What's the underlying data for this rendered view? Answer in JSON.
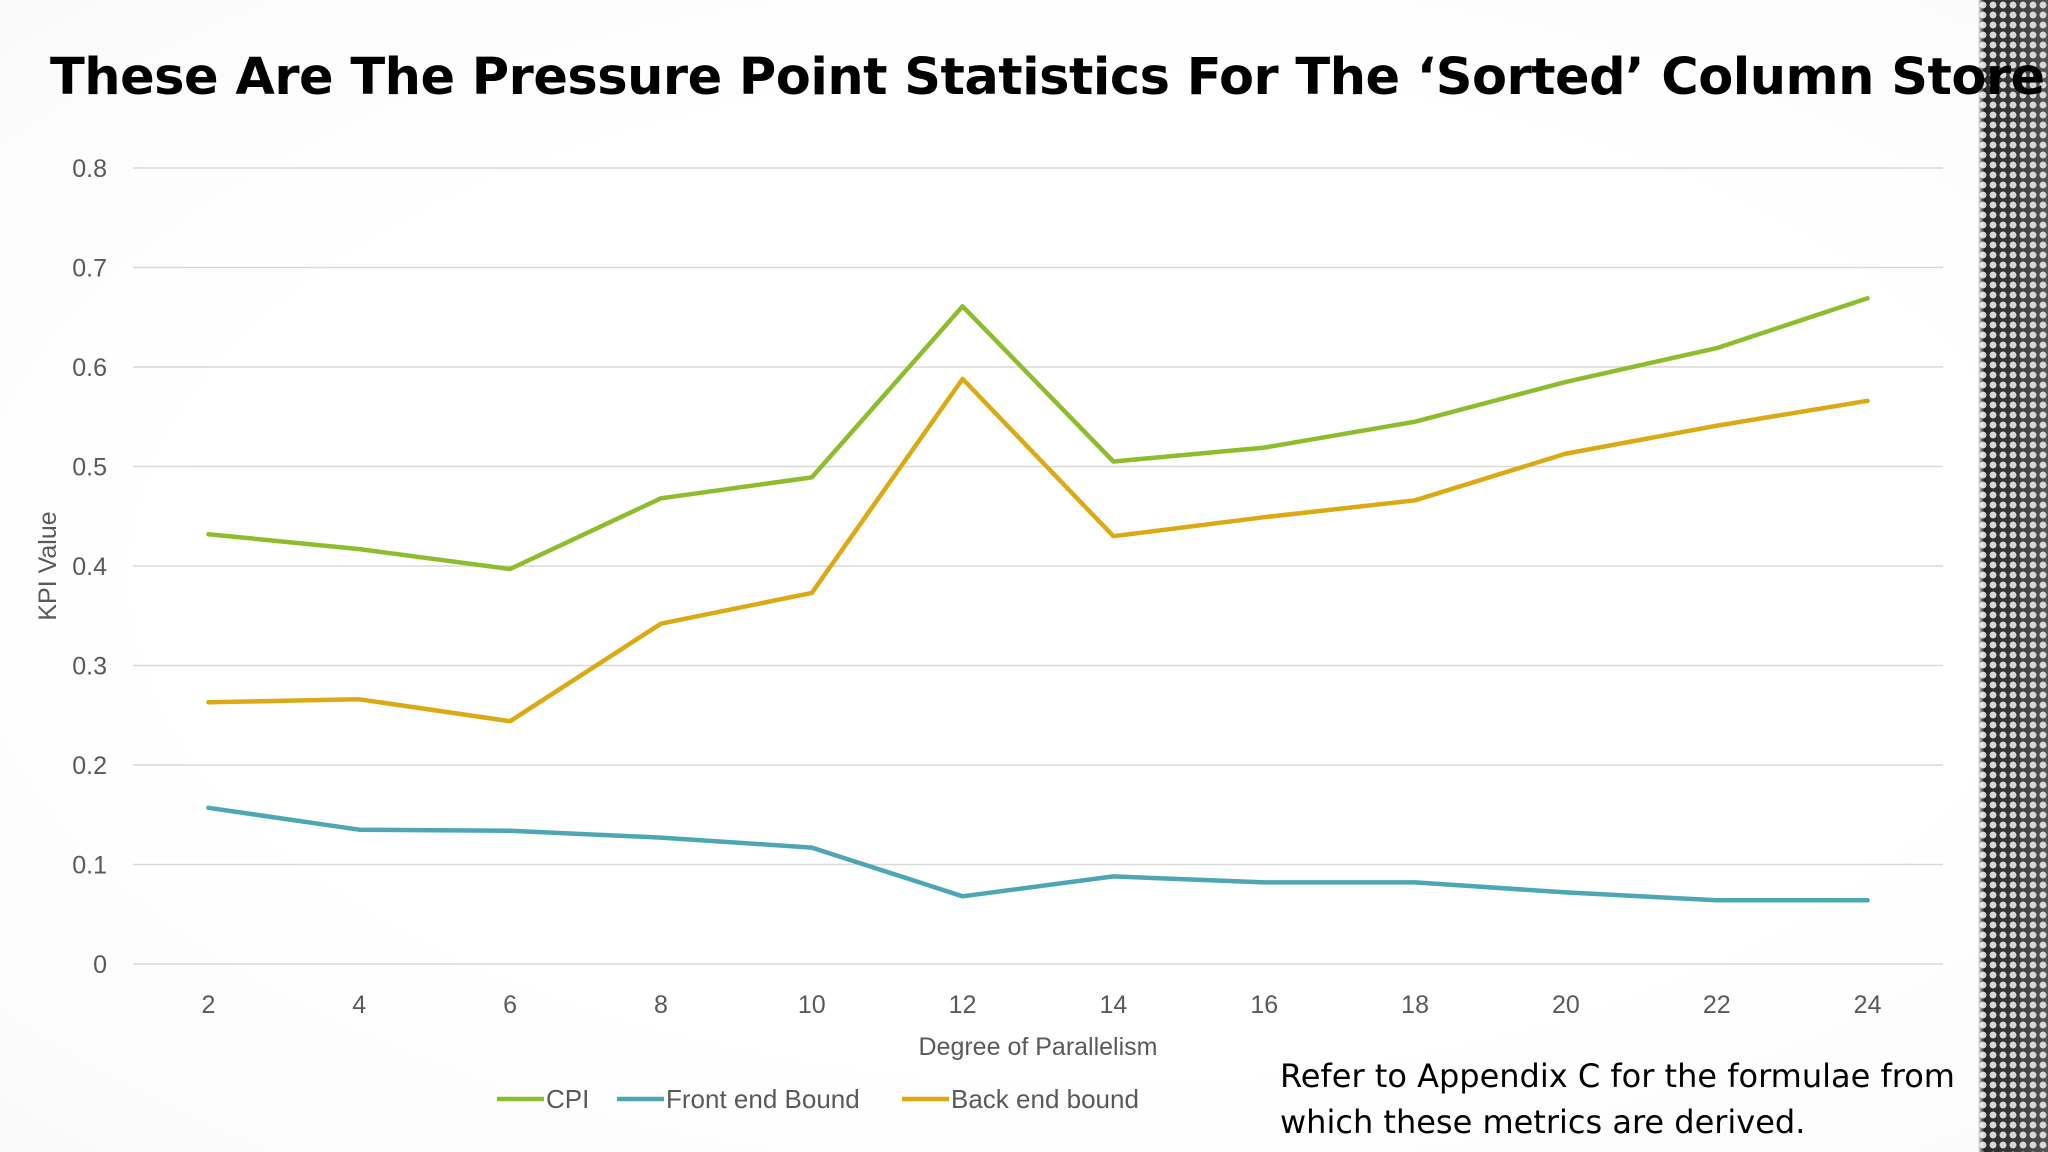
{
  "slide": {
    "title": "These Are The Pressure Point Statistics For The ‘Sorted’ Column Store",
    "note": "Refer to Appendix C for the formulae from which these metrics are derived."
  },
  "chart_data": {
    "type": "line",
    "title": "",
    "xlabel": "Degree of Parallelism",
    "ylabel": "KPI Value",
    "x": [
      2,
      4,
      6,
      8,
      10,
      12,
      14,
      16,
      18,
      20,
      22,
      24
    ],
    "ylim": [
      0,
      0.8
    ],
    "yticks": [
      0,
      0.1,
      0.2,
      0.3,
      0.4,
      0.5,
      0.6,
      0.7,
      0.8
    ],
    "ytick_labels": [
      "0",
      "0.1",
      "0.2",
      "0.3",
      "0.4",
      "0.5",
      "0.6",
      "0.7",
      "0.8"
    ],
    "grid": true,
    "legend_position": "bottom",
    "series": [
      {
        "name": "CPI",
        "color": "#8dbd2d",
        "values": [
          0.432,
          0.417,
          0.397,
          0.468,
          0.489,
          0.661,
          0.505,
          0.519,
          0.545,
          0.585,
          0.619,
          0.669
        ]
      },
      {
        "name": "Front end Bound",
        "color": "#4da6b3",
        "values": [
          0.157,
          0.135,
          0.134,
          0.127,
          0.117,
          0.068,
          0.088,
          0.082,
          0.082,
          0.072,
          0.064,
          0.064
        ]
      },
      {
        "name": "Back end bound",
        "color": "#dba914",
        "values": [
          0.263,
          0.266,
          0.244,
          0.342,
          0.373,
          0.588,
          0.43,
          0.449,
          0.466,
          0.513,
          0.541,
          0.566
        ]
      }
    ]
  }
}
